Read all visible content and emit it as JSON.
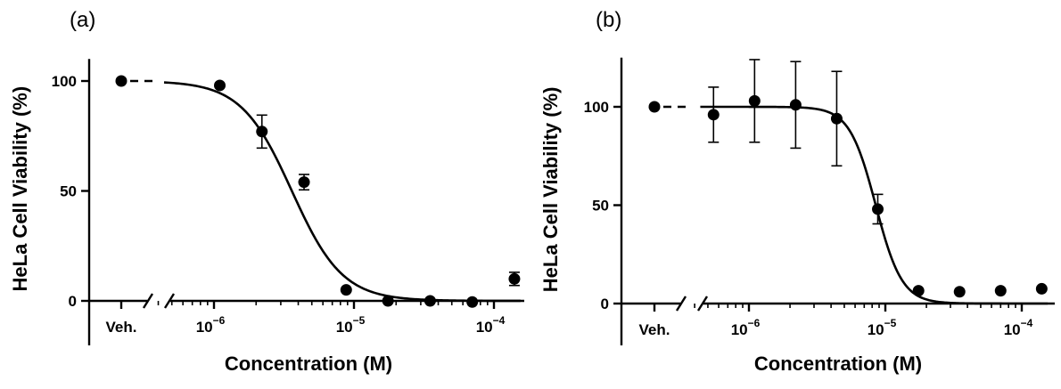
{
  "chart_data": [
    {
      "panel": "(a)",
      "type": "scatter",
      "xlabel": "Concentration (M)",
      "ylabel": "HeLa Cell Viability (%)",
      "xscale": "log",
      "xlim": [
        4e-07,
        0.00016
      ],
      "ylim": [
        0,
        110
      ],
      "yticks": [
        "0",
        "50",
        "100"
      ],
      "xticks": [
        {
          "base": "10",
          "exp": "−6",
          "value": 1e-06
        },
        {
          "base": "10",
          "exp": "−5",
          "value": 1e-05
        },
        {
          "base": "10",
          "exp": "−4",
          "value": 0.0001
        }
      ],
      "vehicle": {
        "label": "Veh.",
        "y": 100
      },
      "points": [
        {
          "x": 1.1e-06,
          "y": 98,
          "err": 1
        },
        {
          "x": 2.2e-06,
          "y": 77,
          "err": 7.5
        },
        {
          "x": 4.4e-06,
          "y": 54,
          "err": 3.5
        },
        {
          "x": 8.8e-06,
          "y": 5,
          "err": 2
        },
        {
          "x": 1.75e-05,
          "y": 0,
          "err": 0.5
        },
        {
          "x": 3.5e-05,
          "y": 0,
          "err": 0.5
        },
        {
          "x": 7e-05,
          "y": -0.5,
          "err": 0.5
        },
        {
          "x": 0.00014,
          "y": 10,
          "err": 3
        }
      ],
      "fit": {
        "top": 100,
        "bottom": 0,
        "ic50": 3.6e-06,
        "hill": 2.4
      }
    },
    {
      "panel": "(b)",
      "type": "scatter",
      "xlabel": "Concentration (M)",
      "ylabel": "HeLa Cell Viability (%)",
      "xscale": "log",
      "xlim": [
        4e-07,
        0.00016
      ],
      "ylim": [
        0,
        125
      ],
      "yticks": [
        "0",
        "50",
        "100"
      ],
      "xticks": [
        {
          "base": "10",
          "exp": "−6",
          "value": 1e-06
        },
        {
          "base": "10",
          "exp": "−5",
          "value": 1e-05
        },
        {
          "base": "10",
          "exp": "−4",
          "value": 0.0001
        }
      ],
      "vehicle": {
        "label": "Veh.",
        "y": 100
      },
      "points": [
        {
          "x": 5.5e-07,
          "y": 96,
          "err": 14
        },
        {
          "x": 1.1e-06,
          "y": 103,
          "err": 21
        },
        {
          "x": 2.2e-06,
          "y": 101,
          "err": 22
        },
        {
          "x": 4.4e-06,
          "y": 94,
          "err": 24
        },
        {
          "x": 8.8e-06,
          "y": 48,
          "err": 7.5
        },
        {
          "x": 1.75e-05,
          "y": 6.5,
          "err": 1
        },
        {
          "x": 3.5e-05,
          "y": 6,
          "err": 1
        },
        {
          "x": 7e-05,
          "y": 6.5,
          "err": 1
        },
        {
          "x": 0.00014,
          "y": 7.5,
          "err": 1
        }
      ],
      "fit": {
        "top": 100,
        "bottom": 0,
        "ic50": 8.5e-06,
        "hill": 4.5
      }
    }
  ]
}
